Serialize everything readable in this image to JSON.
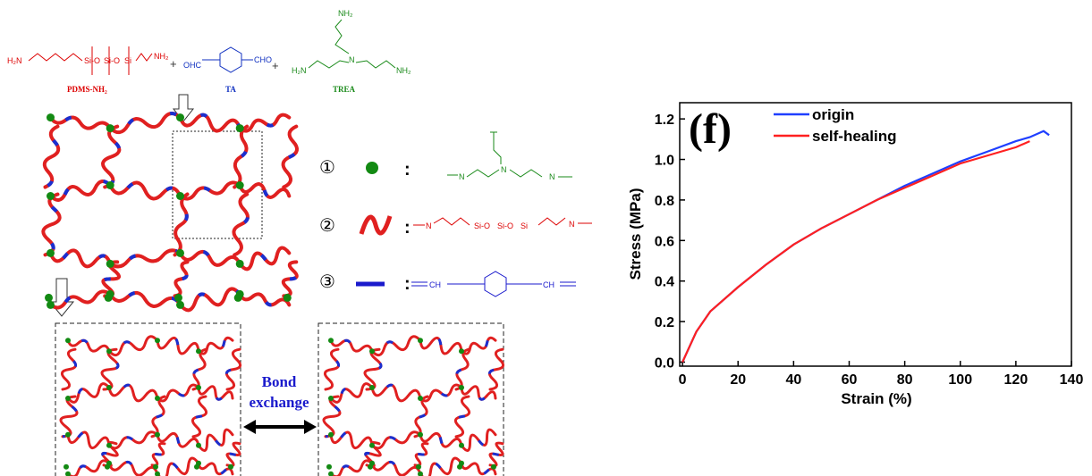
{
  "scheme": {
    "reactants": [
      {
        "name": "PDMS-NH₂",
        "groups": [
          "H₂N",
          "Si-O",
          "Si-O",
          "Si",
          "NH₂"
        ]
      },
      {
        "name": "TA",
        "groups": [
          "OHC",
          "CHO"
        ]
      },
      {
        "name": "TREA",
        "groups": [
          "NH₂",
          "H₂N",
          "N",
          "NH₂"
        ]
      }
    ],
    "plus": [
      "+",
      "+"
    ],
    "legend": [
      {
        "marker": "①",
        "separator": ":",
        "groups": [
          "N",
          "N",
          "N"
        ]
      },
      {
        "marker": "②",
        "separator": ":",
        "groups": [
          "N",
          "Si-O",
          "Si-O",
          "Si",
          "N"
        ]
      },
      {
        "marker": "③",
        "separator": ":",
        "groups": [
          "CH",
          "CH"
        ]
      }
    ],
    "bond_exchange": [
      "Bond",
      "exchange"
    ]
  },
  "chart_data": {
    "type": "line",
    "title": "(f)",
    "x_label": "Strain (%)",
    "y_label": "Stress (MPa)",
    "x": [
      0,
      2,
      5,
      10,
      20,
      30,
      40,
      50,
      60,
      70,
      80,
      90,
      100,
      110,
      120,
      125,
      130,
      132
    ],
    "series": [
      {
        "name": "origin",
        "color": "#1f3fff",
        "values": [
          0,
          0.06,
          0.15,
          0.25,
          0.37,
          0.48,
          0.58,
          0.66,
          0.73,
          0.8,
          0.87,
          0.93,
          0.99,
          1.04,
          1.09,
          1.11,
          1.14,
          1.12
        ]
      },
      {
        "name": "self-healing",
        "color": "#ff2020",
        "values": [
          0,
          0.06,
          0.15,
          0.25,
          0.37,
          0.48,
          0.58,
          0.66,
          0.73,
          0.8,
          0.86,
          0.92,
          0.98,
          1.02,
          1.06,
          1.09,
          null,
          null
        ]
      }
    ],
    "xlim": [
      -1,
      140
    ],
    "ylim": [
      -0.02,
      1.28
    ],
    "xticks": [
      0,
      20,
      40,
      60,
      80,
      100,
      120,
      140
    ],
    "yticks": [
      {
        "value": 0,
        "label": "0.0"
      },
      {
        "value": 0.2,
        "label": "0.2"
      },
      {
        "value": 0.4,
        "label": "0.4"
      },
      {
        "value": 0.6,
        "label": "0.6"
      },
      {
        "value": 0.8,
        "label": "0.8"
      },
      {
        "value": 1.0,
        "label": "1.0"
      },
      {
        "value": 1.2,
        "label": "1.2"
      }
    ]
  }
}
